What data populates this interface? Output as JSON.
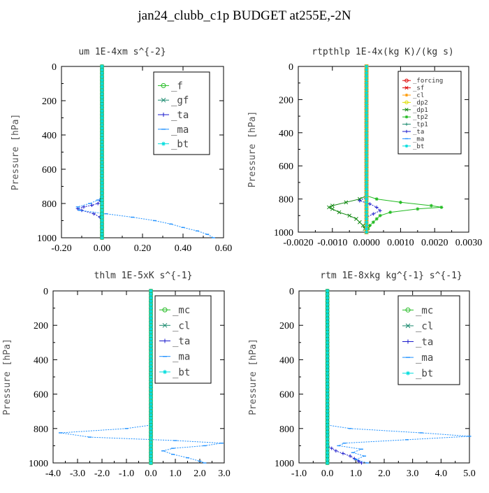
{
  "page": {
    "title": "jan24_clubb_c1p  BUDGET at255E,-2N"
  },
  "colors": {
    "green": "#22bb22",
    "teal": "#1a8a6e",
    "blue": "#1a1acc",
    "lightblue": "#1e90ff",
    "cyan": "#00dddd",
    "red": "#dd0000",
    "orange": "#ff9900",
    "yellow": "#dddd00",
    "darkgreen": "#118811"
  },
  "chart_data": [
    {
      "type": "line",
      "title": "um   1E-4xm s^{-2}",
      "ylabel": "Pressure [hPa]",
      "xlim": [
        -0.2,
        0.6
      ],
      "ylim": [
        1000,
        0
      ],
      "xticks": [
        "-0.20",
        "0.00",
        "0.20",
        "0.40",
        "0.60"
      ],
      "xtick_values": [
        -0.2,
        0.0,
        0.2,
        0.4,
        0.6
      ],
      "yticks": [
        "0",
        "200",
        "400",
        "600",
        "800",
        "1000"
      ],
      "ytick_values": [
        0,
        200,
        400,
        600,
        800,
        1000
      ],
      "legend": {
        "placement": "top-right",
        "size": "big"
      },
      "series": [
        {
          "name": "_f",
          "color": "green",
          "marker": "circle",
          "y": [
            0,
            1000
          ],
          "x": [
            0.0,
            0.0
          ]
        },
        {
          "name": "_gf",
          "color": "teal",
          "marker": "cross",
          "y": [
            0,
            1000
          ],
          "x": [
            0.0,
            0.0
          ]
        },
        {
          "name": "_ta",
          "color": "blue",
          "marker": "plus",
          "y": [
            0,
            760,
            780,
            800,
            810,
            820,
            830,
            840,
            860,
            880,
            900,
            940,
            970,
            1000
          ],
          "x": [
            0.0,
            0.0,
            -0.01,
            -0.02,
            -0.05,
            -0.09,
            -0.12,
            -0.1,
            -0.04,
            -0.01,
            0.0,
            0.0,
            0.0,
            0.0
          ]
        },
        {
          "name": "_ma",
          "color": "lightblue",
          "marker": "dash",
          "y": [
            0,
            760,
            780,
            800,
            820,
            840,
            860,
            880,
            900,
            920,
            940,
            960,
            980,
            1000
          ],
          "x": [
            0.0,
            0.0,
            -0.02,
            -0.06,
            -0.12,
            -0.11,
            0.02,
            0.15,
            0.26,
            0.34,
            0.4,
            0.47,
            0.52,
            0.55
          ]
        },
        {
          "name": "_bt",
          "color": "cyan",
          "marker": "star",
          "y": [
            0,
            1000
          ],
          "x": [
            0.0,
            0.0
          ]
        }
      ]
    },
    {
      "type": "line",
      "title": "rtpthlp   1E-4x(kg K)/(kg s)",
      "ylabel": "Pressure [hPa]",
      "xlim": [
        -0.002,
        0.003
      ],
      "ylim": [
        1000,
        0
      ],
      "xticks": [
        "-0.0020",
        "-0.0010",
        "0.0000",
        "0.0010",
        "0.0020",
        "0.0030"
      ],
      "xtick_values": [
        -0.002,
        -0.001,
        0.0,
        0.001,
        0.002,
        0.003
      ],
      "yticks": [
        "0",
        "200",
        "400",
        "600",
        "800",
        "1000"
      ],
      "ytick_values": [
        0,
        200,
        400,
        600,
        800,
        1000
      ],
      "legend": {
        "placement": "top-right",
        "size": "small"
      },
      "series": [
        {
          "name": "_forcing",
          "color": "red",
          "marker": "circle",
          "y": [
            0,
            1000
          ],
          "x": [
            0.0,
            0.0
          ]
        },
        {
          "name": "_sf",
          "color": "red",
          "marker": "cross",
          "y": [
            0,
            1000
          ],
          "x": [
            0.0,
            0.0
          ]
        },
        {
          "name": "_cl",
          "color": "orange",
          "marker": "star",
          "y": [
            0,
            1000
          ],
          "x": [
            0.0,
            0.0
          ]
        },
        {
          "name": "_dp2",
          "color": "yellow",
          "marker": "circle",
          "y": [
            0,
            1000
          ],
          "x": [
            0.0,
            0.0
          ]
        },
        {
          "name": "_dp1",
          "color": "darkgreen",
          "marker": "cross",
          "y": [
            0,
            780,
            800,
            820,
            840,
            850,
            860,
            880,
            900,
            920,
            940,
            960,
            1000
          ],
          "x": [
            0.0,
            0.0,
            -0.0002,
            -0.0006,
            -0.001,
            -0.0011,
            -0.001,
            -0.0008,
            -0.0005,
            -0.0003,
            -0.0002,
            -0.0001,
            0.0
          ]
        },
        {
          "name": "_tp2",
          "color": "green",
          "marker": "star",
          "y": [
            0,
            780,
            800,
            820,
            840,
            850,
            860,
            880,
            900,
            920,
            940,
            960,
            1000
          ],
          "x": [
            0.0,
            0.0,
            0.0003,
            0.001,
            0.0019,
            0.0022,
            0.0015,
            0.0007,
            0.0004,
            0.0003,
            0.0002,
            0.0001,
            0.0
          ]
        },
        {
          "name": "_tp1",
          "color": "teal",
          "marker": "plus",
          "y": [
            0,
            1000
          ],
          "x": [
            0.0,
            0.0
          ]
        },
        {
          "name": "_ta",
          "color": "blue",
          "marker": "plus",
          "y": [
            0,
            790,
            810,
            830,
            850,
            870,
            890,
            910,
            1000
          ],
          "x": [
            0.0,
            0.0,
            -0.0002,
            0.0001,
            0.0003,
            0.0004,
            0.0002,
            0.0,
            0.0
          ]
        },
        {
          "name": "_ma",
          "color": "lightblue",
          "marker": "dash",
          "y": [
            0,
            1000
          ],
          "x": [
            0.0,
            0.0
          ]
        },
        {
          "name": "_bt",
          "color": "cyan",
          "marker": "star",
          "y": [
            0,
            1000
          ],
          "x": [
            0.0,
            0.0
          ]
        }
      ]
    },
    {
      "type": "line",
      "title": "thlm   1E-5xK s^{-1}",
      "ylabel": "Pressure [hPa]",
      "xlim": [
        -4.0,
        3.0
      ],
      "ylim": [
        1000,
        0
      ],
      "xticks": [
        "-4.0",
        "-3.0",
        "-2.0",
        "-1.0",
        "0.0",
        "1.0",
        "2.0",
        "3.0"
      ],
      "xtick_values": [
        -4.0,
        -3.0,
        -2.0,
        -1.0,
        0.0,
        1.0,
        2.0,
        3.0
      ],
      "yticks": [
        "0",
        "200",
        "400",
        "600",
        "800",
        "1000"
      ],
      "ytick_values": [
        0,
        200,
        400,
        600,
        800,
        1000
      ],
      "legend": {
        "placement": "top-right",
        "size": "big"
      },
      "series": [
        {
          "name": "_mc",
          "color": "green",
          "marker": "circle",
          "y": [
            0,
            1000
          ],
          "x": [
            0.0,
            0.0
          ]
        },
        {
          "name": "_cl",
          "color": "teal",
          "marker": "cross",
          "y": [
            0,
            1000
          ],
          "x": [
            0.0,
            0.0
          ]
        },
        {
          "name": "_ta",
          "color": "blue",
          "marker": "plus",
          "y": [
            0,
            1000
          ],
          "x": [
            0.0,
            0.0
          ]
        },
        {
          "name": "_ma",
          "color": "lightblue",
          "marker": "dash",
          "y": [
            0,
            780,
            800,
            825,
            850,
            870,
            885,
            900,
            915,
            930,
            950,
            970,
            990,
            1000
          ],
          "x": [
            0.0,
            0.0,
            -1.0,
            -3.7,
            -2.5,
            1.0,
            2.9,
            2.2,
            0.9,
            0.5,
            0.9,
            1.5,
            2.0,
            2.2
          ]
        },
        {
          "name": "_bt",
          "color": "cyan",
          "marker": "star",
          "y": [
            0,
            1000
          ],
          "x": [
            0.0,
            0.0
          ]
        }
      ]
    },
    {
      "type": "line",
      "title": "rtm   1E-8xkg kg^{-1} s^{-1}",
      "ylabel": "Pressure [hPa]",
      "xlim": [
        -1.0,
        5.0
      ],
      "ylim": [
        1000,
        0
      ],
      "xticks": [
        "-1.0",
        "0.0",
        "1.0",
        "2.0",
        "3.0",
        "4.0",
        "5.0"
      ],
      "xtick_values": [
        -1.0,
        0.0,
        1.0,
        2.0,
        3.0,
        4.0,
        5.0
      ],
      "yticks": [
        "0",
        "200",
        "400",
        "600",
        "800",
        "1000"
      ],
      "ytick_values": [
        0,
        200,
        400,
        600,
        800,
        1000
      ],
      "legend": {
        "placement": "top-right",
        "size": "big"
      },
      "series": [
        {
          "name": "_mc",
          "color": "green",
          "marker": "circle",
          "y": [
            0,
            1000
          ],
          "x": [
            0.0,
            0.0
          ]
        },
        {
          "name": "_cl",
          "color": "teal",
          "marker": "cross",
          "y": [
            0,
            1000
          ],
          "x": [
            0.0,
            0.0
          ]
        },
        {
          "name": "_ta",
          "color": "blue",
          "marker": "plus",
          "y": [
            0,
            900,
            930,
            960,
            990,
            1000
          ],
          "x": [
            0.0,
            0.0,
            0.3,
            0.8,
            1.1,
            1.2
          ]
        },
        {
          "name": "_ma",
          "color": "lightblue",
          "marker": "dash",
          "y": [
            0,
            780,
            800,
            825,
            845,
            865,
            885,
            900,
            920,
            940,
            960,
            980,
            1000
          ],
          "x": [
            0.0,
            0.0,
            0.8,
            3.3,
            5.0,
            2.8,
            0.6,
            0.4,
            1.2,
            0.9,
            1.3,
            1.0,
            1.4
          ]
        },
        {
          "name": "_bt",
          "color": "cyan",
          "marker": "star",
          "y": [
            0,
            1000
          ],
          "x": [
            0.0,
            0.0
          ]
        }
      ]
    }
  ]
}
